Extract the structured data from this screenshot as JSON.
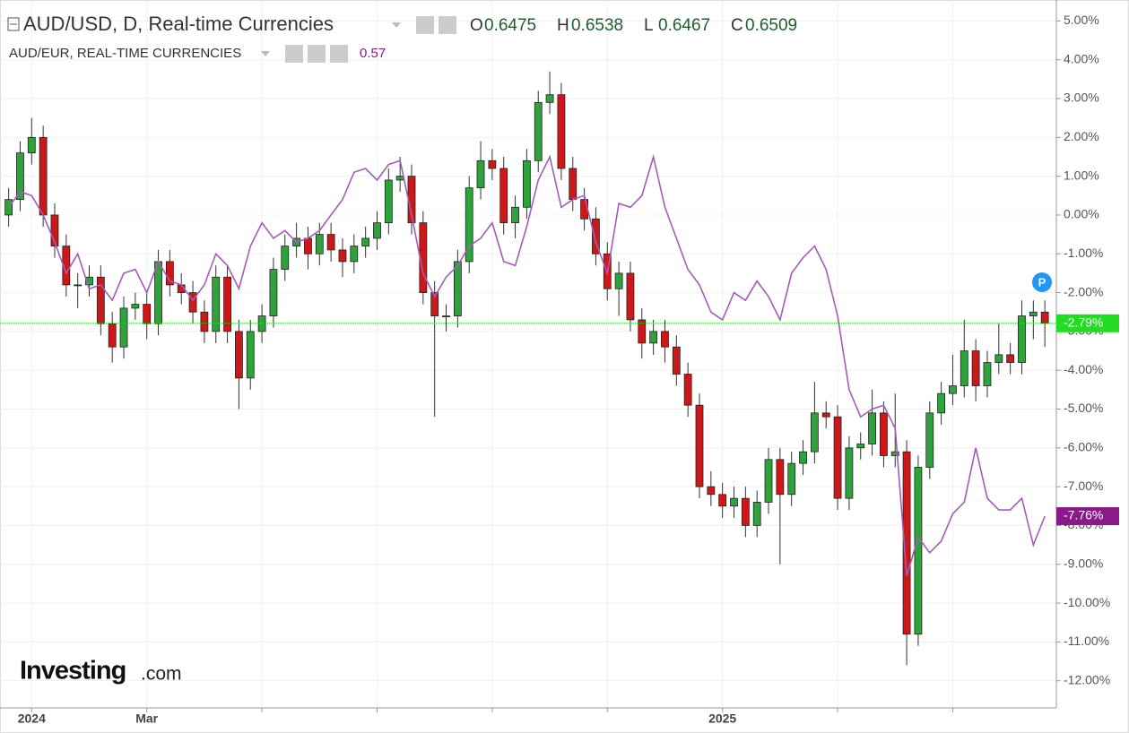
{
  "chart_data": {
    "type": "candlestick",
    "title": "AUD/USD, D, Real-time Currencies",
    "ohlc_legend": [
      {
        "label": "O",
        "value": 0.6475
      },
      {
        "label": "H",
        "value": 0.6538
      },
      {
        "label": "L",
        "value": 0.6467
      },
      {
        "label": "C",
        "value": 0.6509
      }
    ],
    "x": [
      -0.4,
      -0.2,
      0,
      0.2,
      0.4,
      0.6,
      0.8,
      1.0,
      1.2,
      1.4,
      1.6,
      1.8,
      2.0,
      2.2,
      2.4,
      2.6,
      2.8,
      3.0,
      3.2,
      3.4,
      3.6,
      3.8,
      4.0,
      4.2,
      4.4,
      4.6,
      4.8,
      5.0,
      5.2,
      5.4,
      5.6,
      5.8,
      6.0,
      6.2,
      6.4,
      6.6,
      6.8,
      7.0,
      7.2,
      7.4,
      7.6,
      7.8,
      8.0,
      8.2,
      8.4,
      8.6,
      8.8,
      9.0,
      9.2,
      9.4,
      9.6,
      9.8,
      10.0,
      10.2,
      10.4,
      10.6,
      10.8,
      11.0,
      11.2,
      11.4,
      11.6,
      11.8,
      12.0,
      12.2,
      12.4,
      12.6,
      12.8,
      13.0,
      13.2,
      13.4,
      13.6,
      13.8,
      14.0,
      14.2,
      14.4,
      14.6,
      14.8,
      15.0,
      15.2,
      15.4,
      15.6,
      15.8,
      16.0,
      16.2,
      16.4,
      16.6,
      16.8,
      17.0,
      17.2,
      17.4,
      17.6
    ],
    "open": [
      0.0,
      0.4,
      1.6,
      2.0,
      0.0,
      -0.8,
      -1.8,
      -1.8,
      -1.6,
      -2.8,
      -3.4,
      -2.4,
      -2.3,
      -2.8,
      -1.2,
      -1.8,
      -2.0,
      -2.5,
      -3.0,
      -1.6,
      -3.0,
      -4.2,
      -3.0,
      -2.6,
      -1.4,
      -0.8,
      -0.6,
      -1.0,
      -0.5,
      -0.9,
      -1.2,
      -0.8,
      -0.6,
      -0.2,
      0.9,
      1.0,
      -0.2,
      -2.0,
      -2.6,
      -2.6,
      -1.2,
      0.7,
      1.4,
      1.2,
      -0.2,
      0.2,
      1.4,
      2.9,
      3.1,
      1.2,
      0.4,
      -0.1,
      -1.0,
      -1.9,
      -1.5,
      -2.7,
      -3.3,
      -3.0,
      -3.4,
      -4.1,
      -4.9,
      -7.0,
      -7.2,
      -7.5,
      -7.3,
      -8.0,
      -7.4,
      -6.3,
      -7.2,
      -6.4,
      -6.1,
      -5.1,
      -5.2,
      -7.3,
      -6.0,
      -5.9,
      -5.1,
      -6.2,
      -6.1,
      -10.8,
      -6.5,
      -5.1,
      -4.6,
      -4.4,
      -3.5,
      -4.4,
      -3.8,
      -3.6,
      -3.8,
      -2.6,
      -2.5
    ],
    "high": [
      0.7,
      1.9,
      2.5,
      2.3,
      0.3,
      -0.5,
      -1.5,
      -1.3,
      -1.3,
      -2.5,
      -2.1,
      -2.0,
      -2.0,
      -0.9,
      -0.9,
      -1.5,
      -1.7,
      -2.2,
      -1.3,
      -1.3,
      -2.7,
      -2.7,
      -2.3,
      -1.1,
      -0.5,
      -0.2,
      -0.3,
      -0.2,
      -0.2,
      -0.6,
      -0.5,
      -0.3,
      0.1,
      1.2,
      1.5,
      1.3,
      0.1,
      -1.7,
      -2.3,
      -0.9,
      1.0,
      1.9,
      1.7,
      1.5,
      0.5,
      1.7,
      3.2,
      3.7,
      3.4,
      1.5,
      0.7,
      0.2,
      -0.7,
      -1.2,
      -1.2,
      -2.4,
      -2.7,
      -2.7,
      -3.1,
      -3.8,
      -4.6,
      -6.6,
      -6.9,
      -7.0,
      -7.0,
      -7.1,
      -6.0,
      -6.0,
      -6.1,
      -5.8,
      -4.3,
      -4.8,
      -4.9,
      -5.7,
      -5.6,
      -4.5,
      -4.8,
      -4.6,
      -5.8,
      -6.2,
      -4.8,
      -4.3,
      -3.6,
      -2.7,
      -3.2,
      -3.5,
      -2.8,
      -3.3,
      -2.2,
      -2.2,
      -2.2
    ],
    "low": [
      -0.3,
      0.1,
      1.3,
      -0.3,
      -1.1,
      -2.1,
      -2.4,
      -2.1,
      -3.1,
      -3.8,
      -3.7,
      -2.7,
      -3.2,
      -3.1,
      -2.1,
      -2.3,
      -2.8,
      -3.3,
      -3.3,
      -3.3,
      -5.0,
      -4.5,
      -3.3,
      -2.9,
      -1.7,
      -1.1,
      -1.4,
      -1.3,
      -1.2,
      -1.6,
      -1.5,
      -1.1,
      -0.9,
      -0.5,
      0.6,
      -0.5,
      -2.3,
      -5.2,
      -3.0,
      -2.9,
      -1.5,
      0.4,
      0.9,
      -0.5,
      -0.6,
      -0.1,
      1.1,
      2.6,
      0.9,
      0.1,
      -0.4,
      -1.3,
      -2.2,
      -2.6,
      -3.0,
      -3.7,
      -3.6,
      -3.8,
      -4.4,
      -5.2,
      -7.3,
      -7.5,
      -7.8,
      -7.8,
      -8.3,
      -8.3,
      -7.7,
      -9.0,
      -7.5,
      -6.7,
      -6.4,
      -5.5,
      -7.6,
      -7.6,
      -6.3,
      -6.2,
      -6.5,
      -6.5,
      -11.6,
      -11.1,
      -6.8,
      -5.4,
      -4.9,
      -4.7,
      -4.8,
      -4.7,
      -4.1,
      -4.1,
      -4.1,
      -3.2,
      -3.4
    ],
    "close": [
      0.4,
      1.6,
      2.0,
      0.0,
      -0.8,
      -1.8,
      -1.8,
      -1.6,
      -2.8,
      -3.4,
      -2.4,
      -2.3,
      -2.8,
      -1.2,
      -1.8,
      -2.0,
      -2.5,
      -3.0,
      -1.6,
      -3.0,
      -4.2,
      -3.0,
      -2.6,
      -1.4,
      -0.8,
      -0.6,
      -1.0,
      -0.5,
      -0.9,
      -1.2,
      -0.8,
      -0.6,
      -0.2,
      0.9,
      1.0,
      -0.2,
      -2.0,
      -2.6,
      -2.6,
      -1.2,
      0.7,
      1.4,
      1.2,
      -0.2,
      0.2,
      1.4,
      2.9,
      3.1,
      1.2,
      0.4,
      -0.1,
      -1.0,
      -1.9,
      -1.5,
      -2.7,
      -3.3,
      -3.0,
      -3.4,
      -4.1,
      -4.9,
      -7.0,
      -7.2,
      -7.5,
      -7.3,
      -8.0,
      -7.4,
      -6.3,
      -7.2,
      -6.4,
      -6.1,
      -5.1,
      -5.2,
      -7.3,
      -6.0,
      -5.9,
      -5.1,
      -6.2,
      -6.1,
      -10.8,
      -6.5,
      -5.1,
      -4.6,
      -4.4,
      -3.5,
      -4.4,
      -3.8,
      -3.6,
      -3.8,
      -2.6,
      -2.5,
      -2.79
    ],
    "up_color": "#2ea33b",
    "down_color": "#cc1818",
    "last_label": "-2.79%",
    "last_color": "#22dd22",
    "overlay": {
      "name": "AUD/EUR, REAL-TIME CURRENCIES",
      "legend_value": 0.57,
      "color": "#a45cb8",
      "values": [
        0.2,
        0.6,
        0.5,
        0.0,
        -0.7,
        -1.5,
        -1.0,
        -1.9,
        -1.8,
        -2.2,
        -1.5,
        -1.4,
        -2.0,
        -1.2,
        -1.7,
        -1.8,
        -2.2,
        -1.8,
        -1.0,
        -1.3,
        -1.9,
        -0.8,
        -0.2,
        -0.6,
        -0.4,
        -0.7,
        -0.6,
        -0.4,
        0.0,
        0.4,
        1.1,
        1.2,
        0.9,
        1.3,
        1.4,
        0.0,
        -1.5,
        -2.1,
        -1.6,
        -1.3,
        -0.8,
        -0.6,
        -0.2,
        -1.2,
        -1.3,
        -0.3,
        0.9,
        1.5,
        0.2,
        0.4,
        0.5,
        -0.7,
        -1.5,
        0.3,
        0.2,
        0.5,
        1.5,
        0.2,
        -0.6,
        -1.4,
        -1.8,
        -2.5,
        -2.7,
        -2.0,
        -2.2,
        -1.7,
        -2.1,
        -2.7,
        -1.5,
        -1.1,
        -0.8,
        -1.4,
        -2.6,
        -4.5,
        -5.2,
        -5.0,
        -4.9,
        -5.5,
        -9.3,
        -8.3,
        -8.7,
        -8.4,
        -7.7,
        -7.4,
        -6.0,
        -7.3,
        -7.6,
        -7.6,
        -7.3,
        -8.5,
        -7.76
      ],
      "last_label": "-7.76%",
      "label_color": "#8a1a8a"
    },
    "xlim": [
      -0.55,
      17.8
    ],
    "xticks": [
      {
        "value": 0,
        "label": "2024"
      },
      {
        "value": 2,
        "label": "Mar"
      },
      {
        "value": 12,
        "label": "2025"
      }
    ],
    "xgrid": [
      4,
      6,
      8,
      10,
      14,
      16
    ],
    "ylim": [
      -12.7,
      5.54
    ],
    "yticks": [
      {
        "value": 5,
        "label": "5.00%"
      },
      {
        "value": 4,
        "label": "4.00%"
      },
      {
        "value": 3,
        "label": "3.00%"
      },
      {
        "value": 2,
        "label": "2.00%"
      },
      {
        "value": 1,
        "label": "1.00%"
      },
      {
        "value": 0,
        "label": "0.00%"
      },
      {
        "value": -1,
        "label": "-1.00%"
      },
      {
        "value": -2,
        "label": "-2.00%"
      },
      {
        "value": -3,
        "label": "-3.00%"
      },
      {
        "value": -4,
        "label": "-4.00%"
      },
      {
        "value": -5,
        "label": "-5.00%"
      },
      {
        "value": -6,
        "label": "-6.00%"
      },
      {
        "value": -7,
        "label": "-7.00%"
      },
      {
        "value": -8,
        "label": "-8.00%"
      },
      {
        "value": -9,
        "label": "-9.00%"
      },
      {
        "value": -10,
        "label": "-10.00%"
      },
      {
        "value": -11,
        "label": "-11.00%"
      },
      {
        "value": -12,
        "label": "-12.00%"
      }
    ],
    "grid": true,
    "logo": {
      "brand": "Investing",
      "suffix": ".com"
    },
    "marker": "P"
  }
}
